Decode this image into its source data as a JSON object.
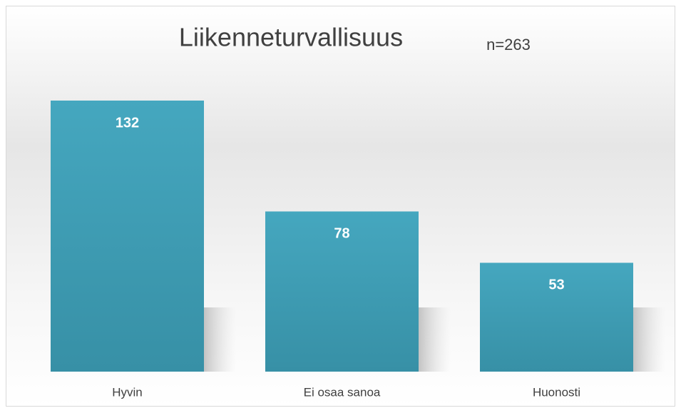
{
  "chart_data": {
    "type": "bar",
    "title": "Liikenneturvallisuus",
    "annotation": "n=263",
    "categories": [
      "Hyvin",
      "Ei osaa sanoa",
      "Huonosti"
    ],
    "values": [
      132,
      78,
      53
    ],
    "color": "#45a7bf"
  }
}
